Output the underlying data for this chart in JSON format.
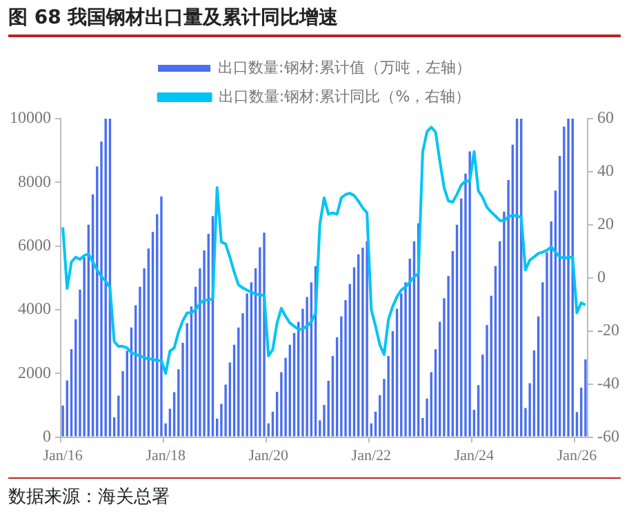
{
  "chart_data": {
    "type": "bar",
    "title": "图 68  我国钢材出口量及累计同比增速",
    "categories": [
      "Jan/16",
      null,
      null,
      null,
      null,
      null,
      null,
      null,
      null,
      null,
      null,
      null,
      null,
      null,
      null,
      null,
      null,
      null,
      null,
      null,
      null,
      null,
      null,
      null,
      "Jan/18",
      null,
      null,
      null,
      null,
      null,
      null,
      null,
      null,
      null,
      null,
      null,
      null,
      null,
      null,
      null,
      null,
      null,
      null,
      null,
      null,
      null,
      null,
      null,
      "Jan/20",
      null,
      null,
      null,
      null,
      null,
      null,
      null,
      null,
      null,
      null,
      null,
      null,
      null,
      null,
      null,
      null,
      null,
      null,
      null,
      null,
      null,
      null,
      null,
      "Jan/22",
      null,
      null,
      null,
      null,
      null,
      null,
      null,
      null,
      null,
      null,
      null,
      null,
      null,
      null,
      null,
      null,
      null,
      null,
      null,
      null,
      null,
      null,
      null,
      "Jan/24",
      null,
      null,
      null,
      null,
      null,
      null,
      null,
      null,
      null,
      null,
      null,
      null,
      null,
      null,
      null,
      null,
      null,
      null,
      null,
      null,
      null,
      null,
      null,
      "Jan/26",
      null,
      null
    ],
    "series": [
      {
        "name": "出口数量:钢材:累计值（万吨，左轴）",
        "color": "#4a6ff0",
        "values": [
          990,
          1780,
          2760,
          3700,
          4630,
          5640,
          6670,
          7620,
          8500,
          9280,
          10000,
          10000,
          620,
          1300,
          2070,
          2710,
          3440,
          4140,
          4720,
          5300,
          5920,
          6440,
          7000,
          7560,
          430,
          890,
          1410,
          2130,
          2960,
          3580,
          4100,
          4720,
          5300,
          5860,
          6380,
          6940,
          580,
          1040,
          1650,
          2340,
          2900,
          3440,
          3890,
          4510,
          4860,
          5300,
          5960,
          6420,
          430,
          800,
          1420,
          2040,
          2490,
          2900,
          3270,
          3620,
          4030,
          4400,
          4860,
          5370,
          530,
          1010,
          1770,
          2550,
          3130,
          3790,
          4300,
          4810,
          5330,
          5740,
          5950,
          6150,
          430,
          800,
          1320,
          1830,
          2550,
          3330,
          4030,
          4510,
          4860,
          5600,
          6150,
          6710,
          600,
          1210,
          2040,
          2760,
          3620,
          4360,
          5060,
          5840,
          6670,
          7490,
          8270,
          8970,
          860,
          1630,
          2590,
          3520,
          4440,
          5370,
          6150,
          7080,
          8070,
          9180,
          10000,
          10000,
          910,
          1690,
          2720,
          3790,
          4860,
          5800,
          6770,
          7740,
          8830,
          9750,
          10000,
          10000,
          790,
          1550,
          2440
        ]
      },
      {
        "name": "出口数量:钢材:累计同比（%，右轴）",
        "type": "line",
        "axis": "y2",
        "color": "#00c4f5",
        "values": [
          19,
          -4,
          6,
          7.8,
          7,
          8.4,
          9,
          6,
          3,
          0.5,
          -1.2,
          -3.6,
          -24,
          -25.8,
          -25.8,
          -26.4,
          -28.2,
          -28.8,
          -29.4,
          -30,
          -30.6,
          -30.6,
          -31.2,
          -31.2,
          -36,
          -27.6,
          -26.4,
          -20.4,
          -16.2,
          -13.2,
          -13.2,
          -12,
          -9.6,
          -8.4,
          -8.4,
          -7.8,
          34,
          13.5,
          12.8,
          7.8,
          2.2,
          -2.6,
          -3.8,
          -4.6,
          -5.4,
          -6.1,
          -6.4,
          -6.6,
          -29.4,
          -27,
          -17,
          -11.5,
          -14.5,
          -17,
          -18.2,
          -19.5,
          -19.2,
          -18.2,
          -16.5,
          -13.3,
          20.3,
          30.2,
          24,
          24.5,
          24,
          30.2,
          31.4,
          31.9,
          31,
          28.9,
          26.4,
          24.5,
          -12,
          -18.2,
          -25.2,
          -28.9,
          -15.7,
          -10.8,
          -7.1,
          -4.6,
          -3.4,
          -1.6,
          0.4,
          1.6,
          47.5,
          55.1,
          56.8,
          55,
          44,
          34,
          29,
          28.5,
          31.5,
          35,
          36.5,
          36.5,
          47.6,
          32.8,
          30.3,
          26.6,
          24.8,
          23.3,
          21.6,
          21.6,
          23,
          23.6,
          23.3,
          22.8,
          3,
          6.7,
          7.9,
          9.2,
          9.7,
          10.4,
          11.7,
          9.7,
          7.9,
          7.4,
          7.7,
          7.9,
          -13.2,
          -9.4,
          -10.2
        ]
      }
    ],
    "ylim": [
      0,
      10000
    ],
    "yticks": [
      0,
      2000,
      4000,
      6000,
      8000,
      10000
    ],
    "y2lim": [
      -60,
      60
    ],
    "y2ticks": [
      -60,
      -40,
      -20,
      0,
      20,
      40,
      60
    ],
    "legend": "top",
    "grid": false,
    "marker": "none",
    "line_style": "solid",
    "annotations": [
      "数据来源：海关总署"
    ]
  }
}
